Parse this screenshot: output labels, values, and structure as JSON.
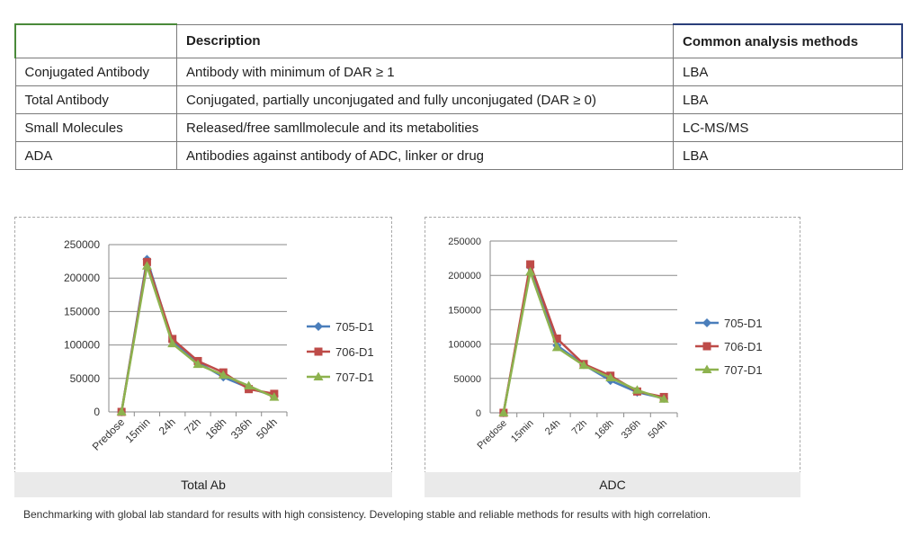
{
  "table": {
    "headers": [
      "",
      "Description",
      "Common analysis methods"
    ],
    "rows": [
      [
        "Conjugated Antibody",
        "Antibody with minimum of DAR ≥ 1",
        "LBA"
      ],
      [
        "Total Antibody",
        "Conjugated, partially unconjugated and fully unconjugated (DAR ≥ 0)",
        "LBA"
      ],
      [
        "Small Molecules",
        "Released/free samllmolecule and its metabolities",
        "LC-MS/MS"
      ],
      [
        "ADA",
        "Antibodies against antibody of ADC, linker or drug",
        "LBA"
      ]
    ]
  },
  "chart_data": [
    {
      "type": "line",
      "title": "Total Ab",
      "categories": [
        "Predose",
        "15min",
        "24h",
        "72h",
        "168h",
        "336h",
        "504h"
      ],
      "ylim": [
        0,
        250000
      ],
      "yticks": [
        "0",
        "50000",
        "100000",
        "150000",
        "200000",
        "250000"
      ],
      "grid": true,
      "legend": "right",
      "series": [
        {
          "name": "705-D1",
          "color": "#4a7ebb",
          "marker": "diamond",
          "values": [
            0,
            228000,
            106000,
            74000,
            52000,
            36000,
            24000
          ]
        },
        {
          "name": "706-D1",
          "color": "#be4b48",
          "marker": "square",
          "values": [
            0,
            224000,
            109000,
            76000,
            59000,
            34000,
            27000
          ]
        },
        {
          "name": "707-D1",
          "color": "#8db24e",
          "marker": "triangle",
          "values": [
            0,
            218000,
            102000,
            71000,
            55000,
            39000,
            22000
          ]
        }
      ]
    },
    {
      "type": "line",
      "title": "ADC",
      "categories": [
        "Predose",
        "15min",
        "24h",
        "72h",
        "168h",
        "336h",
        "504h"
      ],
      "ylim": [
        0,
        250000
      ],
      "yticks": [
        "0",
        "50000",
        "100000",
        "150000",
        "200000",
        "250000"
      ],
      "grid": true,
      "legend": "right",
      "series": [
        {
          "name": "705-D1",
          "color": "#4a7ebb",
          "marker": "diamond",
          "values": [
            0,
            212000,
            98000,
            70000,
            47000,
            30000,
            21000
          ]
        },
        {
          "name": "706-D1",
          "color": "#be4b48",
          "marker": "square",
          "values": [
            0,
            216000,
            108000,
            71000,
            54000,
            31000,
            23000
          ]
        },
        {
          "name": "707-D1",
          "color": "#8db24e",
          "marker": "triangle",
          "values": [
            0,
            205000,
            95000,
            69000,
            51000,
            33000,
            20000
          ]
        }
      ]
    }
  ],
  "footnote": "Benchmarking with global lab standard for results with high consistency. Developing stable and reliable methods for results with high correlation."
}
